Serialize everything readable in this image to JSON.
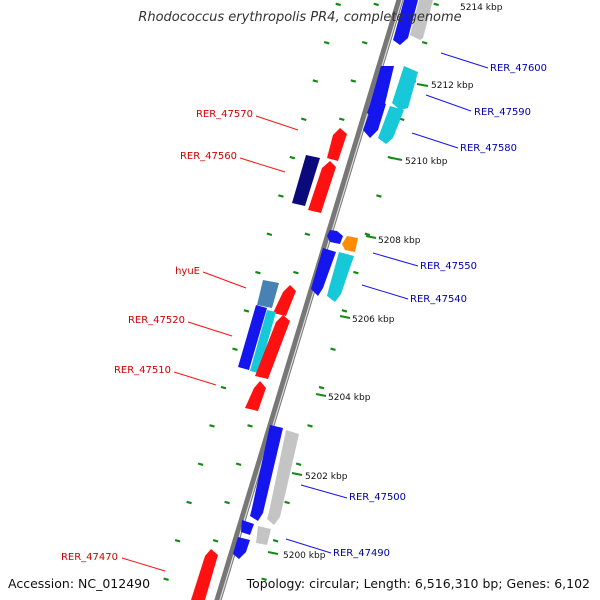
{
  "title": "Rhodococcus erythropolis PR4, complete genome",
  "accession_text": "Accession: NC_012490",
  "topology_text": "Topology: circular; Length: 6,516,310 bp; Genes: 6,102",
  "colors": {
    "backbone": "#777777",
    "tick": "#138a13",
    "red": "#ff1111",
    "blue": "#1515ee",
    "navy": "#0a0a7a",
    "cyan": "#16c8d8",
    "steel": "#4682b4",
    "gray": "#c4c4c4",
    "orange": "#ff8c00",
    "forward_label": "#cc0000",
    "reverse_label": "#0000aa"
  },
  "kbp_labels": [
    "5214 kbp",
    "5212 kbp",
    "5210 kbp",
    "5208 kbp",
    "5206 kbp",
    "5204 kbp",
    "5202 kbp",
    "5200 kbp"
  ],
  "forward_gene_labels": [
    "RER_47570",
    "RER_47560",
    "hyuE",
    "RER_47520",
    "RER_47510",
    "RER_47470"
  ],
  "reverse_gene_labels": [
    "RER_47600",
    "RER_47590",
    "RER_47580",
    "RER_47550",
    "RER_47540",
    "RER_47500",
    "RER_47490"
  ]
}
